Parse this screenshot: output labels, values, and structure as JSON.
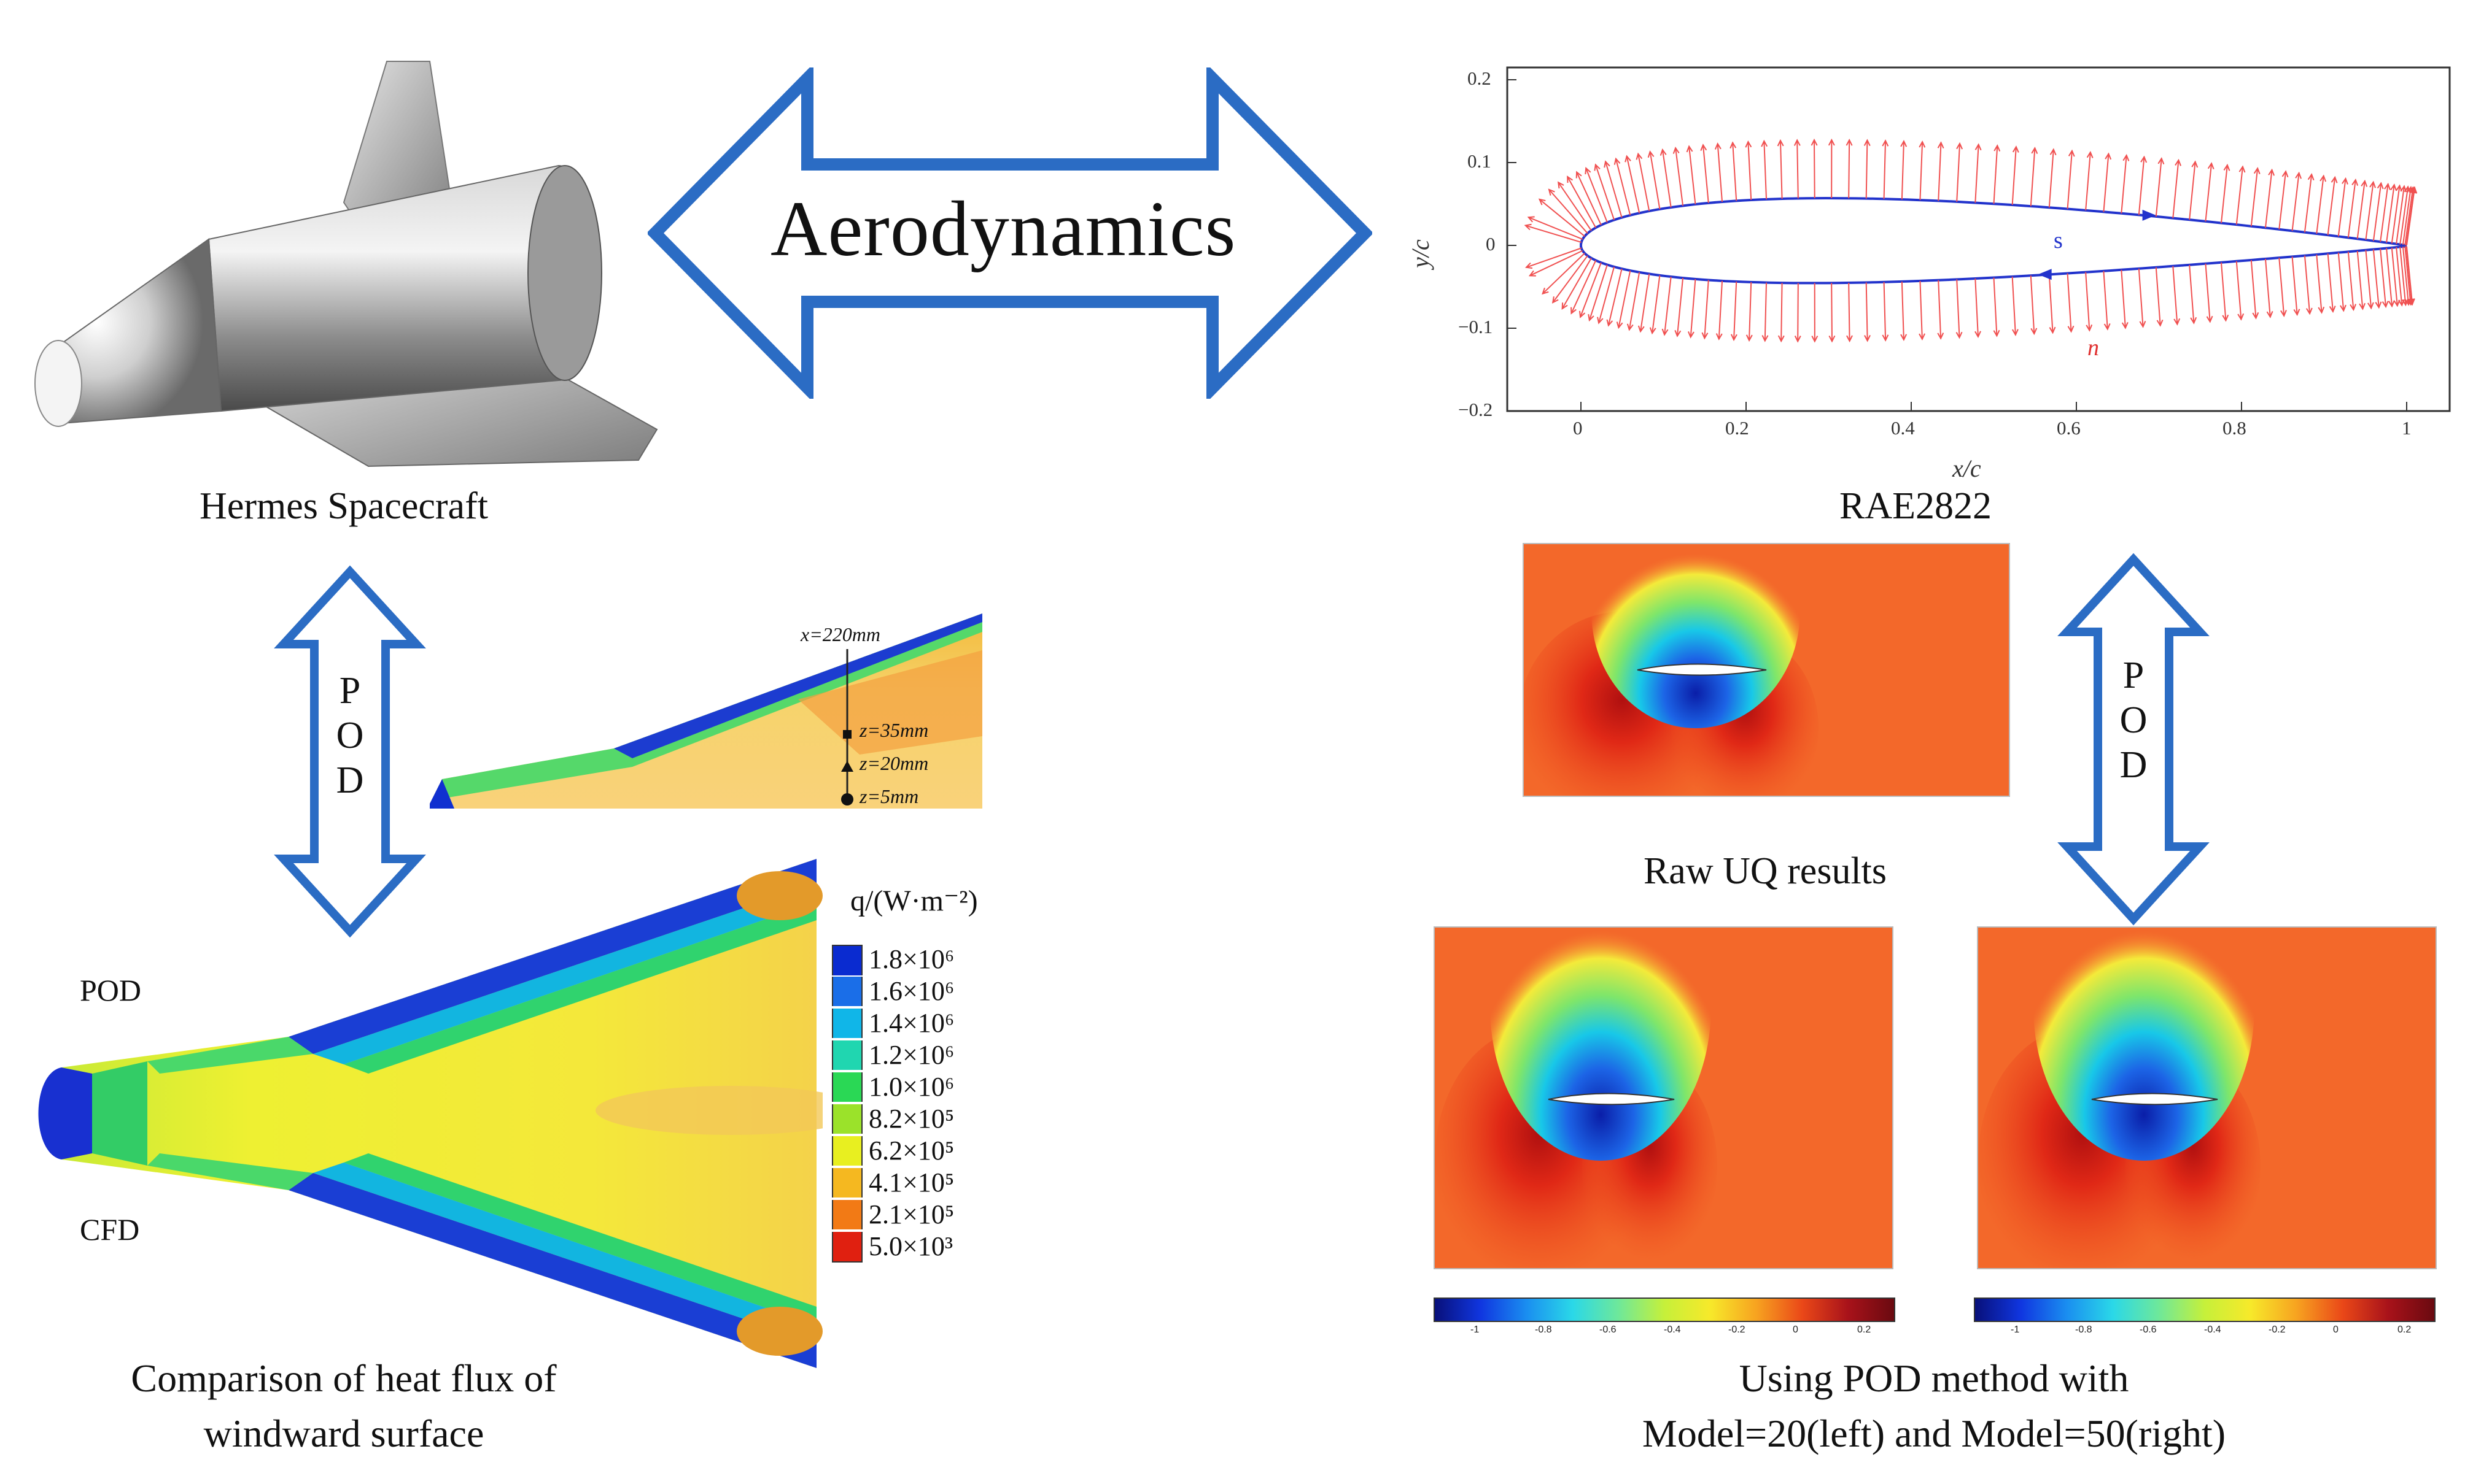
{
  "center_arrow": {
    "label": "Aerodynamics",
    "color": "#2b6cc4"
  },
  "left": {
    "spacecraft_caption": "Hermes Spacecraft",
    "pod_arrow_letters": [
      "P",
      "O",
      "D"
    ],
    "cut_labels": {
      "x": "x=220mm",
      "z1": "z=35mm",
      "z2": "z=20mm",
      "z3": "z=5mm"
    },
    "row_labels": {
      "top": "POD",
      "bottom": "CFD"
    },
    "legend": {
      "title": "q/(W·m⁻²)",
      "entries": [
        "1.8×10⁶",
        "1.6×10⁶",
        "1.4×10⁶",
        "1.2×10⁶",
        "1.0×10⁶",
        "8.2×10⁵",
        "6.2×10⁵",
        "4.1×10⁵",
        "2.1×10⁵",
        "5.0×10³"
      ],
      "colors": [
        "#0a2bd0",
        "#1a6ee8",
        "#10b6e8",
        "#20d6b0",
        "#2ad855",
        "#9be22a",
        "#e8ef20",
        "#f5b820",
        "#f27a15",
        "#e02010"
      ]
    },
    "comparison_caption_line1": "Comparison of heat flux of",
    "comparison_caption_line2": "windward surface"
  },
  "right": {
    "airfoil_caption": "RAE2822",
    "plot": {
      "xlabel": "x/c",
      "ylabel": "y/c",
      "xticks": [
        "0",
        "0.2",
        "0.4",
        "0.6",
        "0.8",
        "1"
      ],
      "yticks": [
        "0.2",
        "0.1",
        "0",
        "−0.1",
        "−0.2"
      ],
      "s_label": "s",
      "n_label": "n⃗"
    },
    "pod_arrow_letters": [
      "P",
      "O",
      "D"
    ],
    "raw_caption": "Raw UQ results",
    "colorbar_ticks": [
      "-1",
      "-0.8",
      "-0.6",
      "-0.4",
      "-0.2",
      "0",
      "0.2"
    ],
    "pod_caption_line1": "Using  POD method with",
    "pod_caption_line2": "Model=20(left) and Model=50(right)"
  }
}
